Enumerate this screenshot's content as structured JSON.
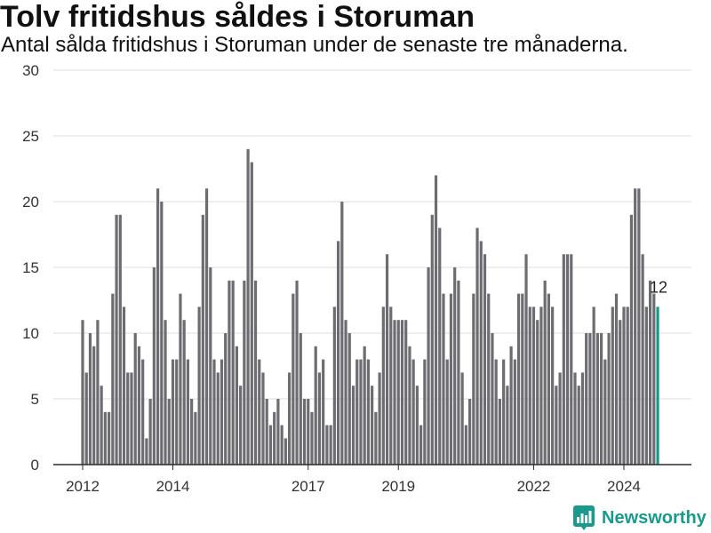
{
  "colors": {
    "bar": "#6d6c71",
    "highlight": "#17998a",
    "grid": "#dedede",
    "axis": "#2b2b2b",
    "brand": "#1a9a8c"
  },
  "chart_data": {
    "type": "bar",
    "title": "Tolv fritidshus såldes i Storuman",
    "subtitle": "Antal sålda fritidshus i Storuman under de senaste tre månaderna.",
    "xlabel": "",
    "ylabel": "",
    "ylim": [
      0,
      30
    ],
    "y_ticks": [
      0,
      5,
      10,
      15,
      20,
      25,
      30
    ],
    "x_ticks": [
      "2012",
      "2014",
      "2017",
      "2019",
      "2022",
      "2024"
    ],
    "grid": true,
    "highlight_last": true,
    "highlight_label": "12",
    "x": [
      "2012-01",
      "2012-02",
      "2012-03",
      "2012-04",
      "2012-05",
      "2012-06",
      "2012-07",
      "2012-08",
      "2012-09",
      "2012-10",
      "2012-11",
      "2012-12",
      "2013-01",
      "2013-02",
      "2013-03",
      "2013-04",
      "2013-05",
      "2013-06",
      "2013-07",
      "2013-08",
      "2013-09",
      "2013-10",
      "2013-11",
      "2013-12",
      "2014-01",
      "2014-02",
      "2014-03",
      "2014-04",
      "2014-05",
      "2014-06",
      "2014-07",
      "2014-08",
      "2014-09",
      "2014-10",
      "2014-11",
      "2014-12",
      "2015-01",
      "2015-02",
      "2015-03",
      "2015-04",
      "2015-05",
      "2015-06",
      "2015-07",
      "2015-08",
      "2015-09",
      "2015-10",
      "2015-11",
      "2015-12",
      "2016-01",
      "2016-02",
      "2016-03",
      "2016-04",
      "2016-05",
      "2016-06",
      "2016-07",
      "2016-08",
      "2016-09",
      "2016-10",
      "2016-11",
      "2016-12",
      "2017-01",
      "2017-02",
      "2017-03",
      "2017-04",
      "2017-05",
      "2017-06",
      "2017-07",
      "2017-08",
      "2017-09",
      "2017-10",
      "2017-11",
      "2017-12",
      "2018-01",
      "2018-02",
      "2018-03",
      "2018-04",
      "2018-05",
      "2018-06",
      "2018-07",
      "2018-08",
      "2018-09",
      "2018-10",
      "2018-11",
      "2018-12",
      "2019-01",
      "2019-02",
      "2019-03",
      "2019-04",
      "2019-05",
      "2019-06",
      "2019-07",
      "2019-08",
      "2019-09",
      "2019-10",
      "2019-11",
      "2019-12",
      "2020-01",
      "2020-02",
      "2020-03",
      "2020-04",
      "2020-05",
      "2020-06",
      "2020-07",
      "2020-08",
      "2020-09",
      "2020-10",
      "2020-11",
      "2020-12",
      "2021-01",
      "2021-02",
      "2021-03",
      "2021-04",
      "2021-05",
      "2021-06",
      "2021-07",
      "2021-08",
      "2021-09",
      "2021-10",
      "2021-11",
      "2021-12",
      "2022-01",
      "2022-02",
      "2022-03",
      "2022-04",
      "2022-05",
      "2022-06",
      "2022-07",
      "2022-08",
      "2022-09",
      "2022-10",
      "2022-11",
      "2022-12",
      "2023-01",
      "2023-02",
      "2023-03",
      "2023-04",
      "2023-05",
      "2023-06",
      "2023-07",
      "2023-08",
      "2023-09",
      "2023-10",
      "2023-11",
      "2023-12",
      "2024-01",
      "2024-02",
      "2024-03",
      "2024-04",
      "2024-05",
      "2024-06",
      "2024-07",
      "2024-08",
      "2024-09",
      "2024-10"
    ],
    "values": [
      11,
      7,
      10,
      9,
      11,
      6,
      4,
      4,
      13,
      19,
      19,
      12,
      7,
      7,
      10,
      9,
      8,
      2,
      5,
      15,
      21,
      20,
      11,
      5,
      8,
      8,
      13,
      11,
      8,
      5,
      4,
      12,
      19,
      21,
      15,
      8,
      7,
      8,
      10,
      14,
      14,
      9,
      6,
      14,
      24,
      23,
      14,
      8,
      7,
      5,
      3,
      4,
      5,
      3,
      2,
      7,
      13,
      14,
      10,
      5,
      5,
      4,
      9,
      7,
      8,
      3,
      3,
      12,
      17,
      20,
      11,
      10,
      6,
      8,
      8,
      9,
      8,
      6,
      4,
      7,
      12,
      16,
      12,
      11,
      11,
      11,
      11,
      9,
      8,
      6,
      3,
      8,
      15,
      19,
      22,
      18,
      13,
      8,
      13,
      15,
      14,
      7,
      3,
      5,
      13,
      18,
      17,
      16,
      13,
      10,
      8,
      5,
      8,
      6,
      9,
      8,
      13,
      13,
      16,
      12,
      12,
      11,
      12,
      14,
      13,
      12,
      6,
      7,
      16,
      16,
      16,
      7,
      6,
      7,
      10,
      10,
      12,
      10,
      10,
      8,
      10,
      12,
      13,
      11,
      12,
      12,
      19,
      21,
      21,
      16,
      12,
      14,
      13,
      12
    ]
  },
  "branding": {
    "name": "Newsworthy",
    "icon": "newsworthy-logo-icon"
  }
}
